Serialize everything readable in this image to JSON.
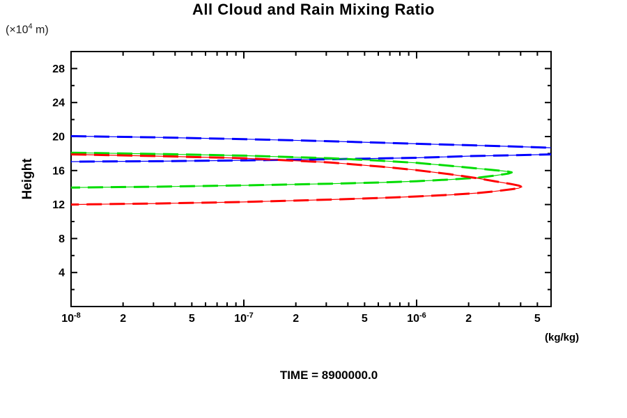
{
  "title": "All Cloud and Rain Mixing Ratio",
  "labels": {
    "y_unit_prefix": "(×10",
    "y_unit_exp": "4",
    "y_unit_suffix": " m)",
    "y_axis": "Height",
    "x_unit": "(kg/kg)",
    "time": "TIME = 8900000.0"
  },
  "colors": {
    "axis": "#000000",
    "blue_series": "#0000ff",
    "green_series": "#00dc00",
    "red_series": "#ff0000"
  },
  "chart_data": {
    "type": "line",
    "title": "All Cloud and Rain Mixing Ratio",
    "xlabel": "(kg/kg)",
    "ylabel": "Height (x10^4 m)",
    "x_scale": "log",
    "xlim": [
      1e-08,
      6e-06
    ],
    "ylim": [
      0,
      30
    ],
    "grid": false,
    "legend": "none",
    "annotation": "TIME = 8900000.0",
    "y_ticks": {
      "major": [
        4,
        8,
        12,
        16,
        20,
        24,
        28
      ],
      "minor": [
        2,
        6,
        10,
        14,
        18,
        22,
        26
      ]
    },
    "x_ticks": {
      "decades": [
        {
          "v": 1e-08,
          "base": "10",
          "exp": "-8"
        },
        {
          "v": 1e-07,
          "base": "10",
          "exp": "-7"
        },
        {
          "v": 1e-06,
          "base": "10",
          "exp": "-6"
        }
      ],
      "labeled_minors": [
        {
          "v": 2e-08,
          "label": "2"
        },
        {
          "v": 5e-08,
          "label": "5"
        },
        {
          "v": 2e-07,
          "label": "2"
        },
        {
          "v": 5e-07,
          "label": "5"
        },
        {
          "v": 2e-06,
          "label": "2"
        },
        {
          "v": 5e-06,
          "label": "5"
        }
      ],
      "minor_multipliers": [
        2,
        3,
        4,
        5,
        6,
        7,
        8,
        9
      ]
    },
    "series": [
      {
        "name": "blue-profile",
        "color": "#0000ff",
        "points": [
          [
            1e-08,
            20.05
          ],
          [
            3.16e-08,
            19.9
          ],
          [
            1e-07,
            19.7
          ],
          [
            3.16e-07,
            19.45
          ],
          [
            1e-06,
            19.15
          ],
          [
            2e-06,
            18.98
          ],
          [
            4e-06,
            18.8
          ],
          [
            6e-06,
            18.68
          ],
          [
            9e-06,
            18.4
          ],
          [
            1.15e-05,
            18.15
          ],
          [
            9e-06,
            17.98
          ],
          [
            6e-06,
            17.9
          ],
          [
            4e-06,
            17.82
          ],
          [
            2e-06,
            17.7
          ],
          [
            1e-06,
            17.5
          ],
          [
            3.16e-07,
            17.33
          ],
          [
            1e-07,
            17.2
          ],
          [
            3.16e-08,
            17.1
          ],
          [
            1e-08,
            17.05
          ]
        ]
      },
      {
        "name": "green-profile",
        "color": "#00dc00",
        "points": [
          [
            1e-08,
            18.1
          ],
          [
            3.16e-08,
            17.95
          ],
          [
            1e-07,
            17.75
          ],
          [
            3.16e-07,
            17.45
          ],
          [
            6.3e-07,
            17.15
          ],
          [
            1e-06,
            16.9
          ],
          [
            1.58e-06,
            16.55
          ],
          [
            2.24e-06,
            16.25
          ],
          [
            2.82e-06,
            16.05
          ],
          [
            3.16e-06,
            15.95
          ],
          [
            3.39e-06,
            15.88
          ],
          [
            3.55e-06,
            15.78
          ],
          [
            3.39e-06,
            15.64
          ],
          [
            3.16e-06,
            15.55
          ],
          [
            2.82e-06,
            15.4
          ],
          [
            2.24e-06,
            15.15
          ],
          [
            1.58e-06,
            14.95
          ],
          [
            1e-06,
            14.75
          ],
          [
            6.3e-07,
            14.6
          ],
          [
            3.16e-07,
            14.45
          ],
          [
            1e-07,
            14.25
          ],
          [
            3.16e-08,
            14.1
          ],
          [
            1e-08,
            14.0
          ]
        ]
      },
      {
        "name": "red-profile",
        "color": "#ff0000",
        "points": [
          [
            1e-08,
            17.9
          ],
          [
            3.16e-08,
            17.7
          ],
          [
            1e-07,
            17.45
          ],
          [
            3.16e-07,
            16.95
          ],
          [
            6.3e-07,
            16.45
          ],
          [
            1e-06,
            16.05
          ],
          [
            1.58e-06,
            15.55
          ],
          [
            2.24e-06,
            15.1
          ],
          [
            2.82e-06,
            14.75
          ],
          [
            3.55e-06,
            14.4
          ],
          [
            3.89e-06,
            14.24
          ],
          [
            4.07e-06,
            14.08
          ],
          [
            3.89e-06,
            13.92
          ],
          [
            3.55e-06,
            13.8
          ],
          [
            2.82e-06,
            13.55
          ],
          [
            2.24e-06,
            13.35
          ],
          [
            1.58e-06,
            13.15
          ],
          [
            1e-06,
            12.95
          ],
          [
            6.3e-07,
            12.78
          ],
          [
            3.16e-07,
            12.58
          ],
          [
            1e-07,
            12.3
          ],
          [
            3.16e-08,
            12.12
          ],
          [
            1e-08,
            12.0
          ]
        ]
      }
    ]
  }
}
